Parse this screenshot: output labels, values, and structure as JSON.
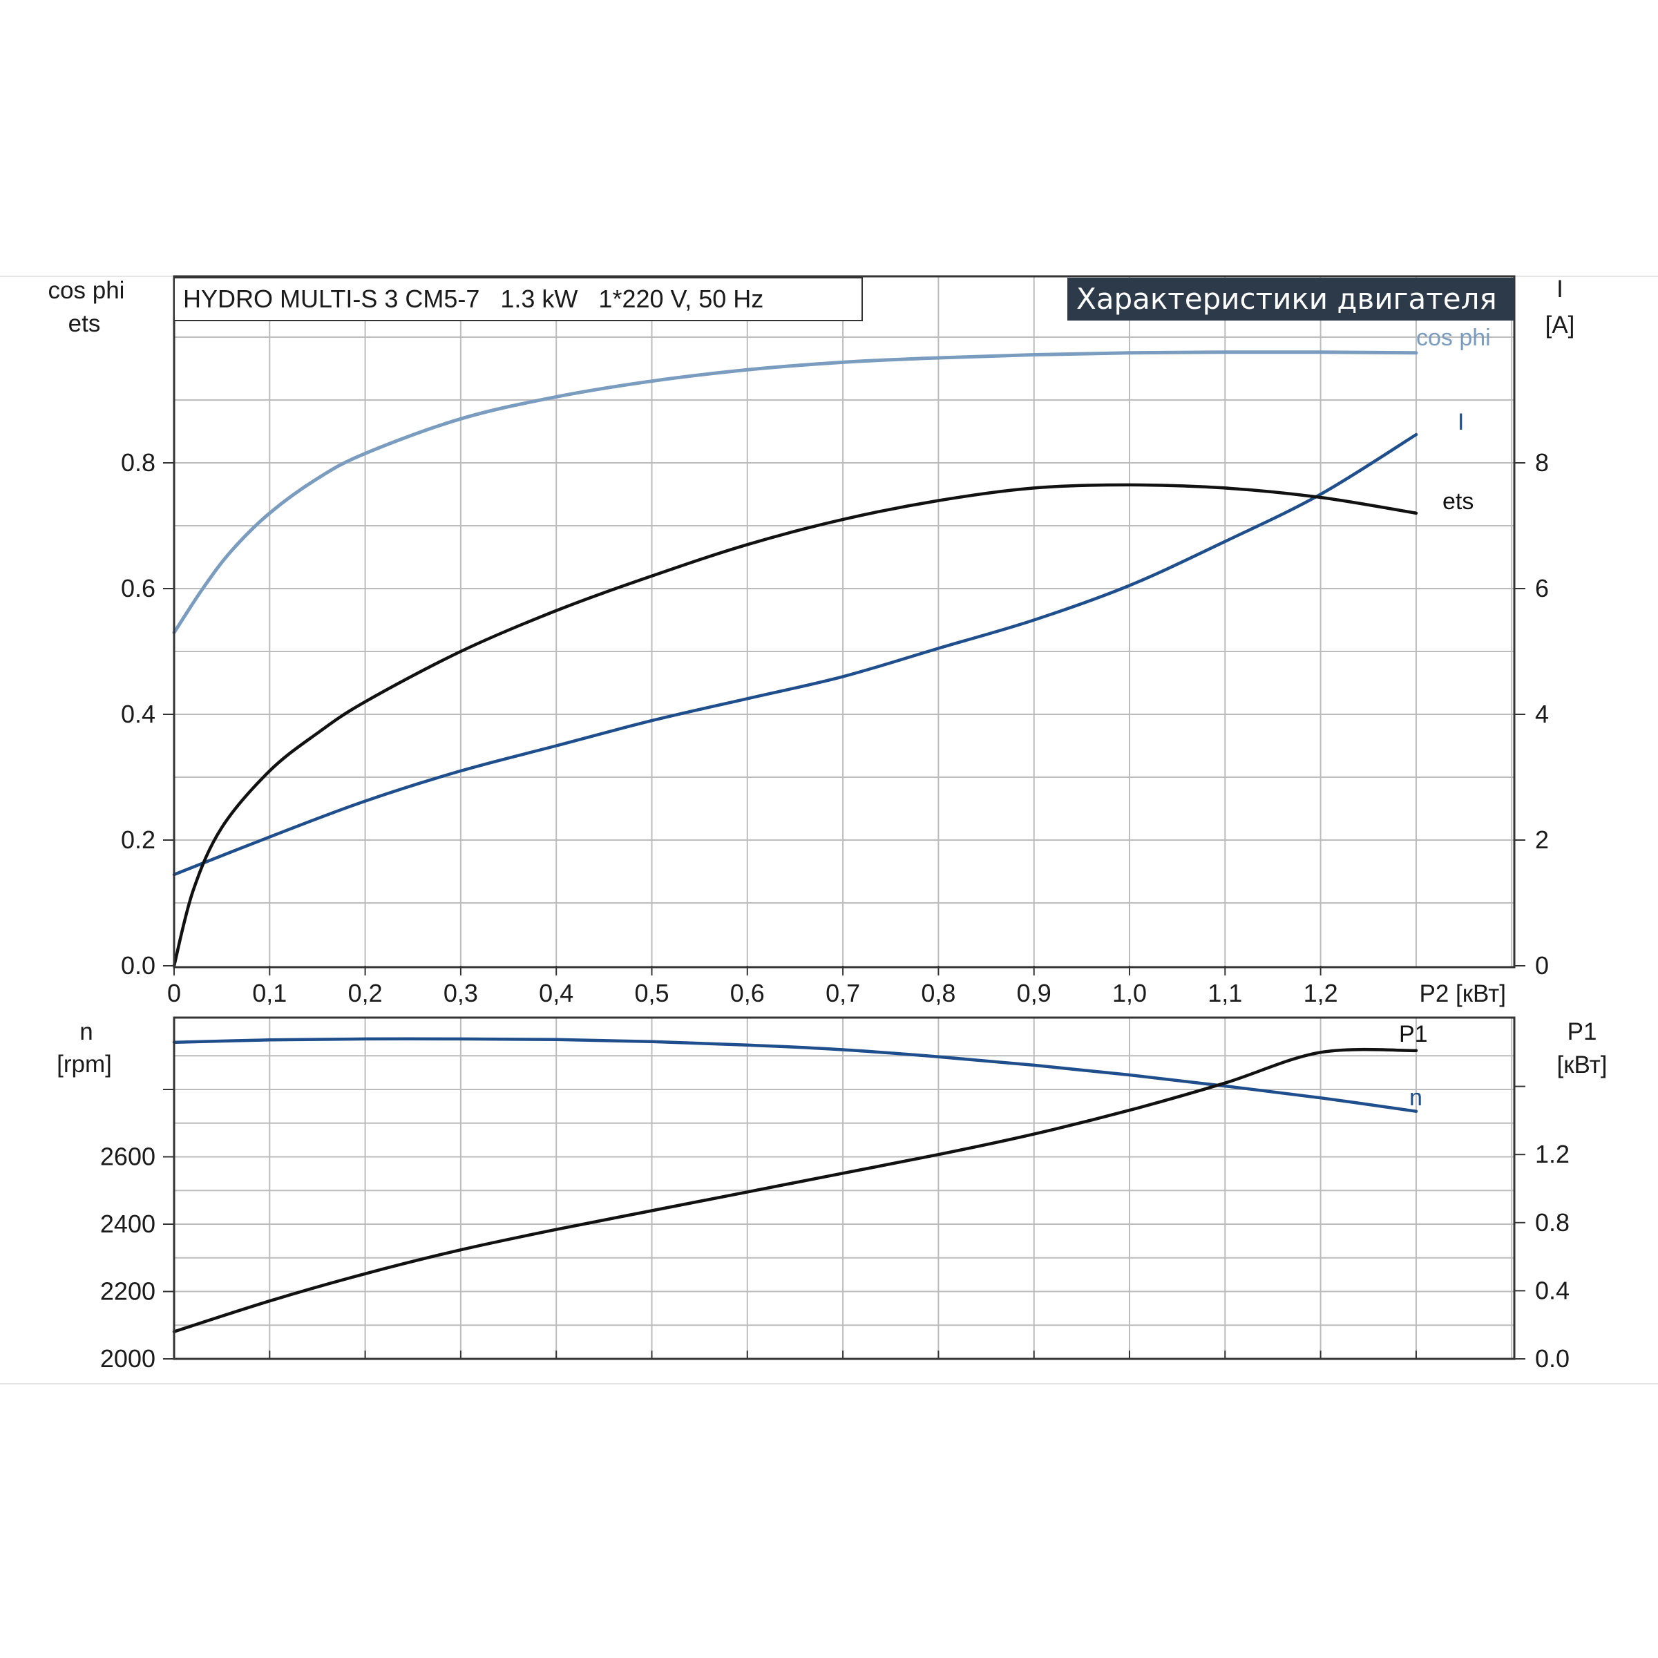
{
  "header": "Характеристики двигателя",
  "title": "HYDRO MULTI-S 3 CM5-7   1.3 kW   1*220 V, 50 Hz",
  "colors": {
    "cos_phi": "#7a9cbf",
    "I": "#1f4e8c",
    "eta": "#111111",
    "n": "#1f4e8c",
    "P1": "#111111",
    "header_bg": "#2d3a4a"
  },
  "chart_data": [
    {
      "type": "line",
      "xlabel": "P2 [кВт]",
      "x_ticks": [
        "0",
        "0,1",
        "0,2",
        "0,3",
        "0,4",
        "0,5",
        "0,6",
        "0,7",
        "0,8",
        "0,9",
        "1,0",
        "1,1",
        "1,2"
      ],
      "xlim": [
        0,
        1.3
      ],
      "left_axis": {
        "label_top": "cos phi",
        "label_bottom": "ets",
        "ylim": [
          0,
          1.1
        ],
        "ticks": [
          "0.0",
          "0.2",
          "0.4",
          "0.6",
          "0.8"
        ]
      },
      "right_axis": {
        "label_top": "I",
        "label_bottom": "[A]",
        "ylim": [
          0,
          11
        ],
        "ticks": [
          "0",
          "2",
          "4",
          "6",
          "8"
        ]
      },
      "grid": true,
      "series": [
        {
          "name": "cos phi",
          "axis": "left",
          "x": [
            0,
            0.03,
            0.06,
            0.1,
            0.15,
            0.2,
            0.3,
            0.4,
            0.5,
            0.6,
            0.7,
            0.8,
            0.9,
            1.0,
            1.1,
            1.2,
            1.3
          ],
          "y": [
            0.53,
            0.6,
            0.66,
            0.72,
            0.775,
            0.815,
            0.87,
            0.905,
            0.93,
            0.948,
            0.96,
            0.967,
            0.972,
            0.975,
            0.976,
            0.976,
            0.975
          ]
        },
        {
          "name": "I",
          "axis": "right",
          "x": [
            0,
            0.1,
            0.2,
            0.3,
            0.4,
            0.5,
            0.6,
            0.7,
            0.8,
            0.9,
            1.0,
            1.1,
            1.2,
            1.3
          ],
          "y": [
            1.45,
            2.05,
            2.62,
            3.1,
            3.5,
            3.9,
            4.25,
            4.6,
            5.05,
            5.5,
            6.05,
            6.75,
            7.5,
            8.45
          ]
        },
        {
          "name": "ets",
          "axis": "left",
          "x": [
            0,
            0.02,
            0.05,
            0.1,
            0.15,
            0.2,
            0.3,
            0.4,
            0.5,
            0.6,
            0.7,
            0.8,
            0.9,
            1.0,
            1.1,
            1.2,
            1.3
          ],
          "y": [
            0,
            0.12,
            0.22,
            0.31,
            0.37,
            0.42,
            0.5,
            0.565,
            0.62,
            0.67,
            0.71,
            0.74,
            0.76,
            0.765,
            0.76,
            0.745,
            0.72
          ]
        }
      ]
    },
    {
      "type": "line",
      "xlim": [
        0,
        1.3
      ],
      "left_axis": {
        "label_top": "n",
        "label_bottom": "[rpm]",
        "ylim": [
          2000,
          3000
        ],
        "ticks": [
          "2000",
          "2200",
          "2400",
          "2600"
        ]
      },
      "right_axis": {
        "label_top": "P1",
        "label_bottom": "[кВт]",
        "ylim": [
          0,
          2.0
        ],
        "ticks": [
          "0.0",
          "0.4",
          "0.8",
          "1.2"
        ]
      },
      "grid": true,
      "series": [
        {
          "name": "n",
          "axis": "left",
          "x": [
            0,
            0.1,
            0.2,
            0.3,
            0.4,
            0.5,
            0.6,
            0.7,
            0.8,
            0.9,
            1.0,
            1.1,
            1.2,
            1.3
          ],
          "y": [
            2940,
            2947,
            2950,
            2950,
            2948,
            2942,
            2932,
            2918,
            2897,
            2872,
            2843,
            2810,
            2775,
            2735
          ]
        },
        {
          "name": "P1",
          "axis": "right",
          "x": [
            0,
            0.1,
            0.2,
            0.3,
            0.4,
            0.5,
            0.6,
            0.7,
            0.8,
            0.9,
            1.0,
            1.1,
            1.2,
            1.3
          ],
          "y": [
            0.16,
            0.34,
            0.5,
            0.64,
            0.76,
            0.87,
            0.98,
            1.09,
            1.2,
            1.32,
            1.46,
            1.62,
            1.8,
            1.81
          ]
        }
      ]
    }
  ]
}
